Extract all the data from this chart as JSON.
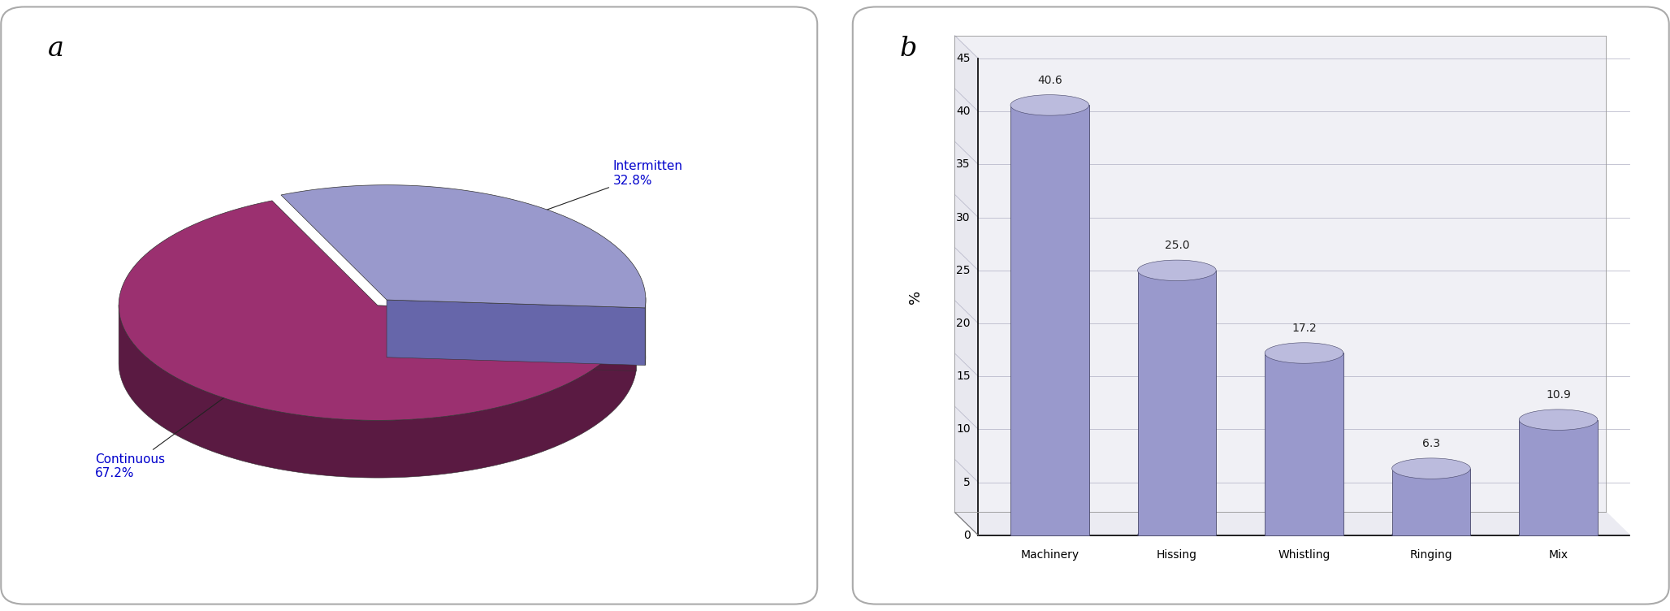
{
  "pie_labels": [
    "Intermitten",
    "Continuous"
  ],
  "pie_values": [
    32.8,
    67.2
  ],
  "pie_color_intermitten": "#9999cc",
  "pie_color_intermitten_side": "#6666aa",
  "pie_color_continuous": "#9b3070",
  "pie_color_continuous_side": "#5a1a42",
  "pie_label_a": "a",
  "pie_label_b": "b",
  "bar_categories": [
    "Machinery",
    "Hissing",
    "Whistling",
    "Ringing",
    "Mix"
  ],
  "bar_values": [
    40.6,
    25.0,
    17.2,
    6.3,
    10.9
  ],
  "bar_color_body": "#9999cc",
  "bar_color_top": "#bbbbdd",
  "bar_color_side": "#7777aa",
  "bar_color_bottom_ellipse": "#8888bb",
  "ylabel": "%",
  "yticks": [
    0,
    5,
    10,
    15,
    20,
    25,
    30,
    35,
    40,
    45
  ],
  "background_color": "#ffffff"
}
